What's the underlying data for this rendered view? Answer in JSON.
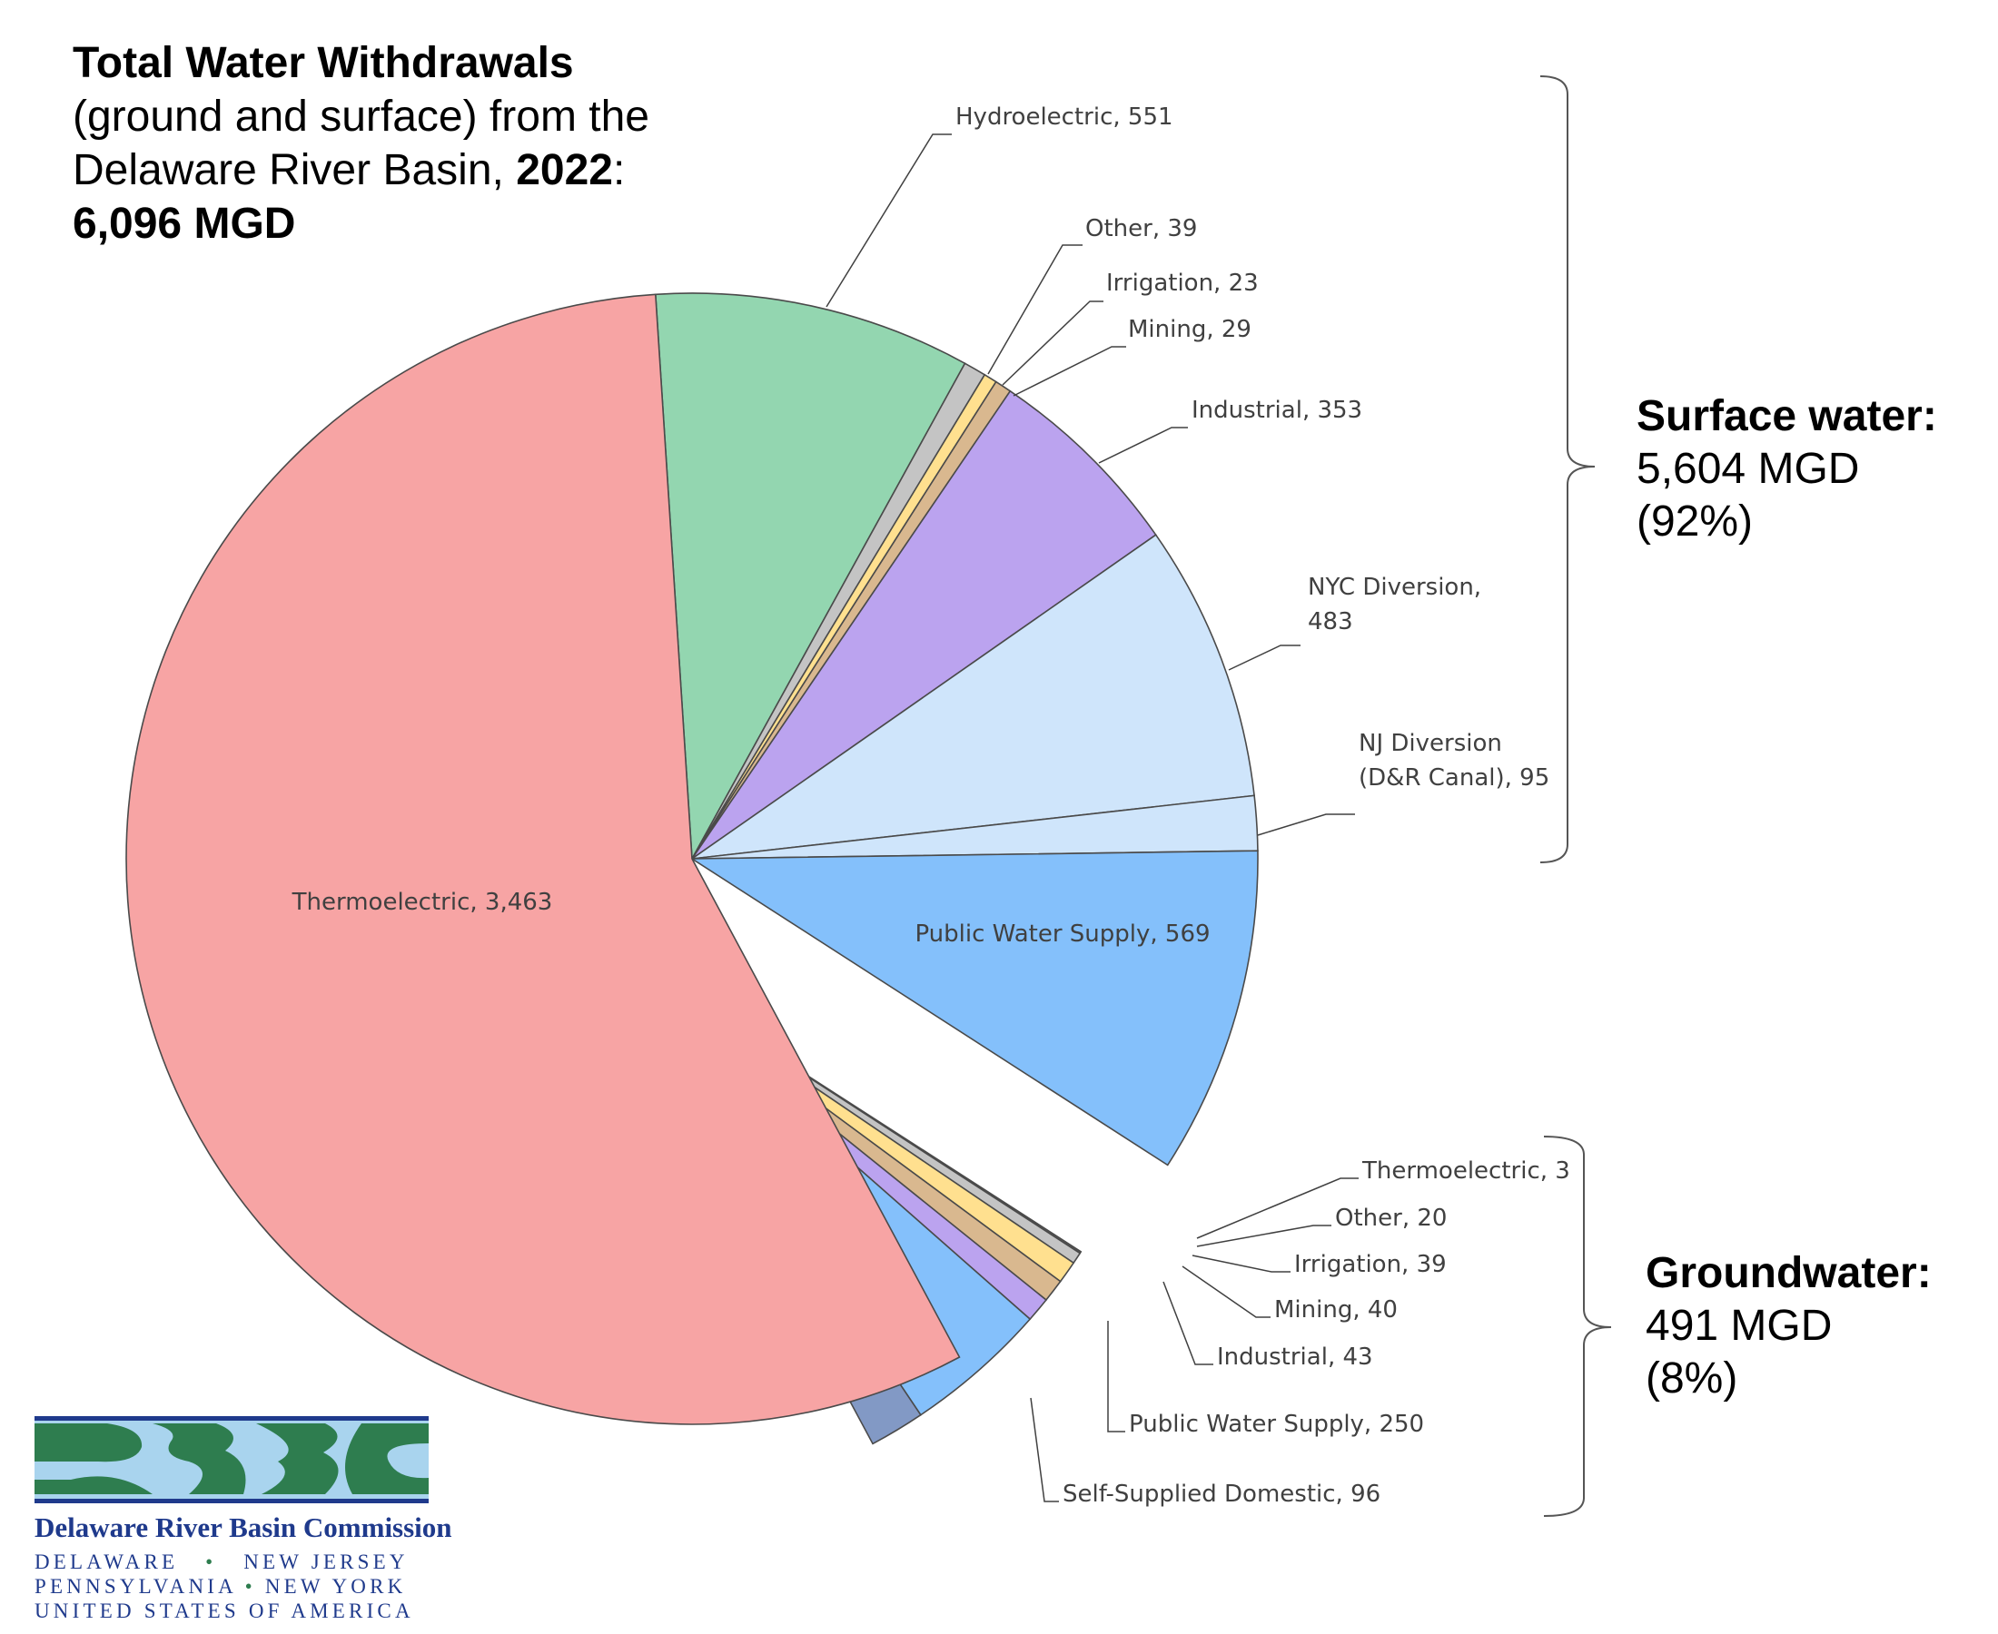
{
  "title": {
    "line1": "Total Water Withdrawals",
    "line2": "(ground and surface) from the",
    "line3_prefix": "Delaware River Basin, ",
    "line3_year": "2022",
    "line3_suffix": ":",
    "line4": "6,096 MGD"
  },
  "groups": {
    "surface": {
      "heading": "Surface water:",
      "value": "5,604 MGD",
      "percent": "(92%)"
    },
    "ground": {
      "heading": "Groundwater:",
      "value": "491 MGD",
      "percent": "(8%)"
    }
  },
  "logo": {
    "name": "Delaware River Basin Commission",
    "state1": "DELAWARE",
    "state2": "NEW JERSEY",
    "state3": "PENNSYLVANIA",
    "state4": "NEW YORK",
    "country": "UNITED STATES OF AMERICA",
    "colors": {
      "navy": "#1f3a8c",
      "green": "#2e7d4f",
      "light_blue": "#a9d4ee"
    }
  },
  "chart_data": {
    "type": "pie",
    "unit": "MGD",
    "total": 6096,
    "slices": [
      {
        "label": "Hydroelectric, 551",
        "category": "Hydroelectric",
        "value": 551,
        "group": "surface",
        "color": "#93d6b0"
      },
      {
        "label": "Other, 39",
        "category": "Other",
        "value": 39,
        "group": "surface",
        "color": "#c4c4c4"
      },
      {
        "label": "Irrigation, 23",
        "category": "Irrigation",
        "value": 23,
        "group": "surface",
        "color": "#ffe08f"
      },
      {
        "label": "Mining, 29",
        "category": "Mining",
        "value": 29,
        "group": "surface",
        "color": "#d9b88f"
      },
      {
        "label": "Industrial, 353",
        "category": "Industrial",
        "value": 353,
        "group": "surface",
        "color": "#bba3ef"
      },
      {
        "label": "NYC Diversion, 483",
        "category": "NYC Diversion",
        "value": 483,
        "group": "surface",
        "color": "#cfe5fb"
      },
      {
        "label": "NJ Diversion (D&R Canal), 95",
        "category": "NJ Diversion (D&R Canal)",
        "value": 95,
        "group": "surface",
        "color": "#cfe5fb"
      },
      {
        "label": "Public Water Supply, 569",
        "category": "Public Water Supply",
        "value": 569,
        "group": "surface",
        "color": "#84c0fb"
      },
      {
        "label": "Thermoelectric, 3",
        "category": "Thermoelectric",
        "value": 3,
        "group": "ground",
        "color": "#6b6b6b"
      },
      {
        "label": "Other, 20",
        "category": "Other",
        "value": 20,
        "group": "ground",
        "color": "#c4c4c4"
      },
      {
        "label": "Irrigation, 39",
        "category": "Irrigation",
        "value": 39,
        "group": "ground",
        "color": "#ffe08f"
      },
      {
        "label": "Mining, 40",
        "category": "Mining",
        "value": 40,
        "group": "ground",
        "color": "#d9b88f"
      },
      {
        "label": "Industrial, 43",
        "category": "Industrial",
        "value": 43,
        "group": "ground",
        "color": "#bba3ef"
      },
      {
        "label": "Public Water Supply, 250",
        "category": "Public Water Supply",
        "value": 250,
        "group": "ground",
        "color": "#84c0fb"
      },
      {
        "label": "Self-Supplied Domestic, 96",
        "category": "Self-Supplied Domestic",
        "value": 96,
        "group": "ground",
        "color": "#8299c5"
      },
      {
        "label": "Thermoelectric, 3,463",
        "category": "Thermoelectric",
        "value": 3463,
        "group": "surface",
        "color": "#f7a4a4"
      }
    ]
  }
}
